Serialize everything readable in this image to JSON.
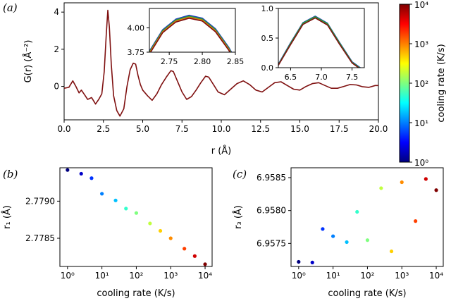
{
  "chart_data": [
    {
      "id": "a",
      "type": "line",
      "panel_label": "(a)",
      "xlabel": "r (Å)",
      "ylabel": "G(r) (Å⁻²)",
      "xlim": [
        0,
        20
      ],
      "ylim": [
        -1.8,
        4.5
      ],
      "xticks": [
        "0.0",
        "2.5",
        "5.0",
        "7.5",
        "10.0",
        "12.5",
        "15.0",
        "17.5",
        "20.0"
      ],
      "xtick_values": [
        0,
        2.5,
        5,
        7.5,
        10,
        12.5,
        15,
        17.5,
        20
      ],
      "yticks": [
        "0",
        "2",
        "4"
      ],
      "ytick_values": [
        0,
        2,
        4
      ],
      "series": [
        {
          "color": "#7f1010",
          "x": [
            0,
            0.3,
            0.55,
            0.75,
            0.95,
            1.1,
            1.3,
            1.5,
            1.75,
            2.0,
            2.2,
            2.4,
            2.55,
            2.68,
            2.78,
            2.88,
            3.0,
            3.15,
            3.35,
            3.55,
            3.8,
            4.0,
            4.2,
            4.4,
            4.55,
            4.7,
            4.85,
            5.0,
            5.3,
            5.6,
            5.9,
            6.2,
            6.5,
            6.8,
            6.95,
            7.2,
            7.5,
            7.8,
            8.1,
            8.4,
            8.7,
            9.0,
            9.2,
            9.5,
            9.8,
            10.2,
            10.6,
            11.0,
            11.4,
            11.8,
            12.2,
            12.6,
            13.0,
            13.4,
            13.8,
            14.2,
            14.6,
            15.0,
            15.4,
            15.8,
            16.2,
            16.6,
            17.0,
            17.4,
            17.8,
            18.2,
            18.6,
            19.0,
            19.4,
            19.8,
            20.0
          ],
          "y": [
            -0.1,
            -0.05,
            0.3,
            0.0,
            -0.35,
            -0.2,
            -0.45,
            -0.7,
            -0.6,
            -0.95,
            -0.7,
            -0.4,
            0.8,
            2.8,
            4.1,
            3.2,
            1.2,
            -0.5,
            -1.3,
            -1.6,
            -1.2,
            0.0,
            0.9,
            1.25,
            1.2,
            0.6,
            0.1,
            -0.2,
            -0.5,
            -0.75,
            -0.4,
            0.1,
            0.5,
            0.85,
            0.8,
            0.3,
            -0.3,
            -0.7,
            -0.55,
            -0.2,
            0.2,
            0.55,
            0.5,
            0.1,
            -0.3,
            -0.45,
            -0.15,
            0.15,
            0.3,
            0.1,
            -0.2,
            -0.3,
            -0.05,
            0.2,
            0.25,
            0.05,
            -0.15,
            -0.2,
            0.0,
            0.15,
            0.2,
            0.05,
            -0.1,
            -0.1,
            0.0,
            0.1,
            0.08,
            -0.02,
            -0.05,
            0.05,
            0.05
          ]
        }
      ],
      "insets": [
        {
          "xlim": [
            2.72,
            2.85
          ],
          "ylim": [
            3.75,
            4.2
          ],
          "xticks": [
            "2.75",
            "2.80",
            "2.85"
          ],
          "xtick_values": [
            2.75,
            2.8,
            2.85
          ],
          "yticks": [
            "3.75",
            "4.00"
          ],
          "ytick_values": [
            3.75,
            4.0
          ],
          "series": [
            {
              "color": "#1f3fbf",
              "x": [
                2.72,
                2.74,
                2.76,
                2.78,
                2.8,
                2.82,
                2.84,
                2.85
              ],
              "y": [
                3.76,
                3.98,
                4.09,
                4.13,
                4.1,
                3.99,
                3.8,
                3.68
              ]
            },
            {
              "color": "#2ca02c",
              "x": [
                2.72,
                2.74,
                2.76,
                2.78,
                2.8,
                2.82,
                2.84,
                2.85
              ],
              "y": [
                3.75,
                3.97,
                4.08,
                4.12,
                4.09,
                3.98,
                3.79,
                3.67
              ]
            },
            {
              "color": "#e07b10",
              "x": [
                2.72,
                2.74,
                2.76,
                2.78,
                2.8,
                2.82,
                2.84,
                2.85
              ],
              "y": [
                3.74,
                3.96,
                4.07,
                4.11,
                4.08,
                3.97,
                3.78,
                3.66
              ]
            },
            {
              "color": "#7f1010",
              "x": [
                2.72,
                2.74,
                2.76,
                2.78,
                2.8,
                2.82,
                2.84,
                2.85
              ],
              "y": [
                3.73,
                3.95,
                4.06,
                4.1,
                4.07,
                3.96,
                3.77,
                3.65
              ]
            }
          ]
        },
        {
          "xlim": [
            6.3,
            7.7
          ],
          "ylim": [
            0.0,
            1.0
          ],
          "xticks": [
            "6.5",
            "7.0",
            "7.5"
          ],
          "xtick_values": [
            6.5,
            7.0,
            7.5
          ],
          "yticks": [
            "0.0",
            "0.5",
            "1.0"
          ],
          "ytick_values": [
            0.0,
            0.5,
            1.0
          ],
          "series": [
            {
              "color": "#1f3fbf",
              "x": [
                6.3,
                6.5,
                6.7,
                6.9,
                7.1,
                7.3,
                7.5,
                7.7
              ],
              "y": [
                0.06,
                0.42,
                0.76,
                0.87,
                0.75,
                0.42,
                0.1,
                -0.05
              ]
            },
            {
              "color": "#2ca02c",
              "x": [
                6.3,
                6.5,
                6.7,
                6.9,
                7.1,
                7.3,
                7.5,
                7.7
              ],
              "y": [
                0.05,
                0.41,
                0.75,
                0.86,
                0.74,
                0.41,
                0.09,
                -0.06
              ]
            },
            {
              "color": "#7f1010",
              "x": [
                6.3,
                6.5,
                6.7,
                6.9,
                7.1,
                7.3,
                7.5,
                7.7
              ],
              "y": [
                0.04,
                0.39,
                0.73,
                0.84,
                0.72,
                0.39,
                0.08,
                -0.07
              ]
            }
          ]
        }
      ],
      "colorbar": {
        "label": "cooling rate (K/s)",
        "scale": "log",
        "range": [
          1,
          10000
        ],
        "ticks": [
          "10⁰",
          "10¹",
          "10²",
          "10³",
          "10⁴"
        ],
        "colormap": [
          "#00007f",
          "#0000ff",
          "#007fff",
          "#00ffff",
          "#7fff7f",
          "#ffff00",
          "#ff7f00",
          "#ff0000",
          "#7f0000"
        ]
      }
    },
    {
      "id": "b",
      "type": "scatter",
      "panel_label": "(b)",
      "xlabel": "cooling rate (K/s)",
      "ylabel": "r₁ (Å)",
      "xscale": "log",
      "xlim": [
        0.6,
        16000
      ],
      "ylim": [
        2.77812,
        2.77945
      ],
      "xticks": [
        "10⁰",
        "10¹",
        "10²",
        "10³",
        "10⁴"
      ],
      "xtick_values": [
        1,
        10,
        100,
        1000,
        10000
      ],
      "yticks": [
        "2.7785",
        "2.7790"
      ],
      "ytick_values": [
        2.7785,
        2.779
      ],
      "points": [
        {
          "x": 1,
          "y": 2.77942,
          "color": "#00007f"
        },
        {
          "x": 2.5,
          "y": 2.77937,
          "color": "#0000c8"
        },
        {
          "x": 5,
          "y": 2.77931,
          "color": "#0033ff"
        },
        {
          "x": 10,
          "y": 2.7791,
          "color": "#0080ff"
        },
        {
          "x": 25,
          "y": 2.77901,
          "color": "#00c0ff"
        },
        {
          "x": 50,
          "y": 2.7789,
          "color": "#33ffcc"
        },
        {
          "x": 100,
          "y": 2.77884,
          "color": "#7fff7f"
        },
        {
          "x": 250,
          "y": 2.7787,
          "color": "#c0ff3f"
        },
        {
          "x": 500,
          "y": 2.7786,
          "color": "#ffd000"
        },
        {
          "x": 1000,
          "y": 2.7785,
          "color": "#ff8c00"
        },
        {
          "x": 2500,
          "y": 2.77836,
          "color": "#ff4000"
        },
        {
          "x": 5000,
          "y": 2.77826,
          "color": "#d00000"
        },
        {
          "x": 10000,
          "y": 2.77815,
          "color": "#7f0000"
        }
      ]
    },
    {
      "id": "c",
      "type": "scatter",
      "panel_label": "(c)",
      "xlabel": "cooling rate (K/s)",
      "ylabel": "r₃ (Å)",
      "xscale": "log",
      "xlim": [
        0.6,
        16000
      ],
      "ylim": [
        6.95715,
        6.95865
      ],
      "xticks": [
        "10⁰",
        "10¹",
        "10²",
        "10³",
        "10⁴"
      ],
      "xtick_values": [
        1,
        10,
        100,
        1000,
        10000
      ],
      "yticks": [
        "6.9575",
        "6.9580",
        "6.9585"
      ],
      "ytick_values": [
        6.9575,
        6.958,
        6.9585
      ],
      "points": [
        {
          "x": 1,
          "y": 6.95722,
          "color": "#00007f"
        },
        {
          "x": 2.5,
          "y": 6.95721,
          "color": "#0000c8"
        },
        {
          "x": 5,
          "y": 6.95772,
          "color": "#0033ff"
        },
        {
          "x": 10,
          "y": 6.95761,
          "color": "#0080ff"
        },
        {
          "x": 25,
          "y": 6.95752,
          "color": "#00c0ff"
        },
        {
          "x": 50,
          "y": 6.95798,
          "color": "#33ffcc"
        },
        {
          "x": 100,
          "y": 6.95755,
          "color": "#7fff7f"
        },
        {
          "x": 250,
          "y": 6.95834,
          "color": "#c0ff3f"
        },
        {
          "x": 500,
          "y": 6.95738,
          "color": "#ffd000"
        },
        {
          "x": 1000,
          "y": 6.95843,
          "color": "#ff8c00"
        },
        {
          "x": 2500,
          "y": 6.95784,
          "color": "#ff4000"
        },
        {
          "x": 5000,
          "y": 6.95848,
          "color": "#d00000"
        },
        {
          "x": 10000,
          "y": 6.95831,
          "color": "#7f0000"
        }
      ]
    }
  ]
}
